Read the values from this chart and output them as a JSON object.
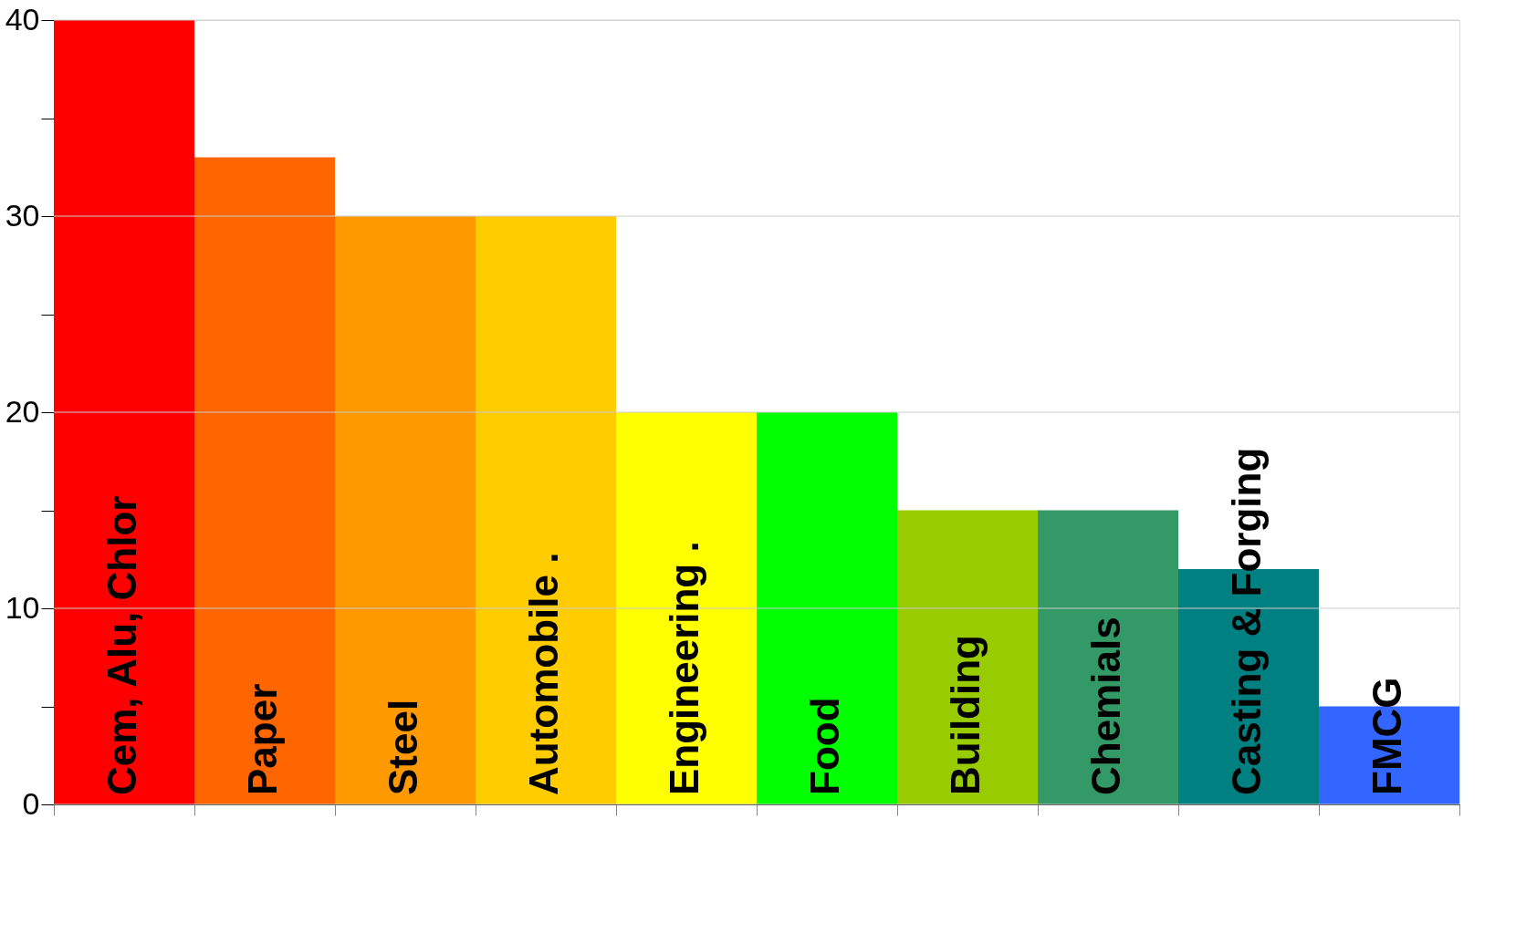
{
  "chart_data": {
    "type": "bar",
    "categories": [
      "Cem, Alu, Chlor",
      "Paper",
      "Steel",
      "Automobile .",
      "Engineering .",
      "Food",
      "Building",
      "Chemials",
      "Casting & Forging",
      "FMCG"
    ],
    "values": [
      40,
      33,
      30,
      30,
      20,
      20,
      15,
      15,
      12,
      5
    ],
    "colors": [
      "#ff0000",
      "#ff6600",
      "#ff9900",
      "#ffcc00",
      "#ffff00",
      "#00ff00",
      "#99cc00",
      "#339966",
      "#008080",
      "#3366ff"
    ],
    "ylim": [
      0,
      40
    ],
    "yticks": [
      0,
      {
        "value": 5,
        "label": null
      },
      10,
      {
        "value": 15,
        "label": null
      },
      20,
      {
        "value": 25,
        "label": null
      },
      30,
      {
        "value": 35,
        "label": null
      },
      40
    ],
    "grid": "y",
    "tick_labels": "y"
  }
}
